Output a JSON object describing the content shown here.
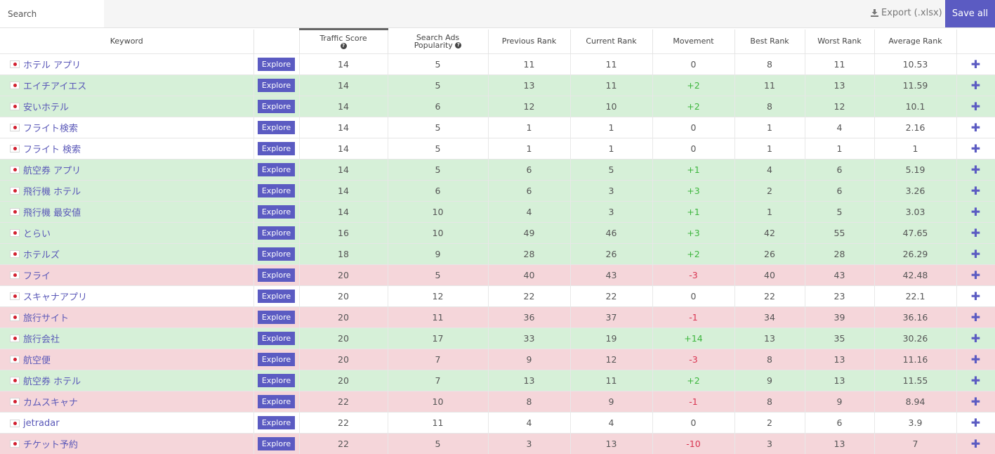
{
  "search": {
    "placeholder": "Search"
  },
  "toolbar": {
    "export_label": "Export (.xlsx)",
    "save_all_label": "Save all"
  },
  "colors": {
    "accent": "#5b5bc2",
    "row_green": "#d6f0d8",
    "row_red": "#f5d6da",
    "positive": "#3db53d",
    "negative": "#d8334f"
  },
  "columns": {
    "keyword": "Keyword",
    "traffic_score": "Traffic Score",
    "search_ads_1": "Search Ads",
    "search_ads_2": "Popularity",
    "previous_rank": "Previous Rank",
    "current_rank": "Current Rank",
    "movement": "Movement",
    "best_rank": "Best Rank",
    "worst_rank": "Worst Rank",
    "average_rank": "Average Rank"
  },
  "explore_label": "Explore",
  "rows": [
    {
      "keyword": "ホテル アプリ",
      "traffic": "14",
      "ads": "5",
      "prev": "11",
      "cur": "11",
      "move": "0",
      "best": "8",
      "worst": "11",
      "avg": "10.53",
      "tone": "plain",
      "dir": "zero"
    },
    {
      "keyword": "エイチアイエス",
      "traffic": "14",
      "ads": "5",
      "prev": "13",
      "cur": "11",
      "move": "+2",
      "best": "11",
      "worst": "13",
      "avg": "11.59",
      "tone": "green",
      "dir": "pos"
    },
    {
      "keyword": "安いホテル",
      "traffic": "14",
      "ads": "6",
      "prev": "12",
      "cur": "10",
      "move": "+2",
      "best": "8",
      "worst": "12",
      "avg": "10.1",
      "tone": "green",
      "dir": "pos"
    },
    {
      "keyword": "フライト検索",
      "traffic": "14",
      "ads": "5",
      "prev": "1",
      "cur": "1",
      "move": "0",
      "best": "1",
      "worst": "4",
      "avg": "2.16",
      "tone": "plain",
      "dir": "zero"
    },
    {
      "keyword": "フライト 検索",
      "traffic": "14",
      "ads": "5",
      "prev": "1",
      "cur": "1",
      "move": "0",
      "best": "1",
      "worst": "1",
      "avg": "1",
      "tone": "plain",
      "dir": "zero"
    },
    {
      "keyword": "航空券 アプリ",
      "traffic": "14",
      "ads": "5",
      "prev": "6",
      "cur": "5",
      "move": "+1",
      "best": "4",
      "worst": "6",
      "avg": "5.19",
      "tone": "green",
      "dir": "pos"
    },
    {
      "keyword": "飛行機 ホテル",
      "traffic": "14",
      "ads": "6",
      "prev": "6",
      "cur": "3",
      "move": "+3",
      "best": "2",
      "worst": "6",
      "avg": "3.26",
      "tone": "green",
      "dir": "pos"
    },
    {
      "keyword": "飛行機 最安値",
      "traffic": "14",
      "ads": "10",
      "prev": "4",
      "cur": "3",
      "move": "+1",
      "best": "1",
      "worst": "5",
      "avg": "3.03",
      "tone": "green",
      "dir": "pos"
    },
    {
      "keyword": "とらい",
      "traffic": "16",
      "ads": "10",
      "prev": "49",
      "cur": "46",
      "move": "+3",
      "best": "42",
      "worst": "55",
      "avg": "47.65",
      "tone": "green",
      "dir": "pos"
    },
    {
      "keyword": "ホテルズ",
      "traffic": "18",
      "ads": "9",
      "prev": "28",
      "cur": "26",
      "move": "+2",
      "best": "26",
      "worst": "28",
      "avg": "26.29",
      "tone": "green",
      "dir": "pos"
    },
    {
      "keyword": "フライ",
      "traffic": "20",
      "ads": "5",
      "prev": "40",
      "cur": "43",
      "move": "-3",
      "best": "40",
      "worst": "43",
      "avg": "42.48",
      "tone": "red",
      "dir": "neg"
    },
    {
      "keyword": "スキャナアプリ",
      "traffic": "20",
      "ads": "12",
      "prev": "22",
      "cur": "22",
      "move": "0",
      "best": "22",
      "worst": "23",
      "avg": "22.1",
      "tone": "plain",
      "dir": "zero"
    },
    {
      "keyword": "旅行サイト",
      "traffic": "20",
      "ads": "11",
      "prev": "36",
      "cur": "37",
      "move": "-1",
      "best": "34",
      "worst": "39",
      "avg": "36.16",
      "tone": "red",
      "dir": "neg"
    },
    {
      "keyword": "旅行会社",
      "traffic": "20",
      "ads": "17",
      "prev": "33",
      "cur": "19",
      "move": "+14",
      "best": "13",
      "worst": "35",
      "avg": "30.26",
      "tone": "green",
      "dir": "pos"
    },
    {
      "keyword": "航空便",
      "traffic": "20",
      "ads": "7",
      "prev": "9",
      "cur": "12",
      "move": "-3",
      "best": "8",
      "worst": "13",
      "avg": "11.16",
      "tone": "red",
      "dir": "neg"
    },
    {
      "keyword": "航空券 ホテル",
      "traffic": "20",
      "ads": "7",
      "prev": "13",
      "cur": "11",
      "move": "+2",
      "best": "9",
      "worst": "13",
      "avg": "11.55",
      "tone": "green",
      "dir": "pos"
    },
    {
      "keyword": "カムスキャナ",
      "traffic": "22",
      "ads": "10",
      "prev": "8",
      "cur": "9",
      "move": "-1",
      "best": "8",
      "worst": "9",
      "avg": "8.94",
      "tone": "red",
      "dir": "neg"
    },
    {
      "keyword": "jetradar",
      "traffic": "22",
      "ads": "11",
      "prev": "4",
      "cur": "4",
      "move": "0",
      "best": "2",
      "worst": "6",
      "avg": "3.9",
      "tone": "plain",
      "dir": "zero"
    },
    {
      "keyword": "チケット予約",
      "traffic": "22",
      "ads": "5",
      "prev": "3",
      "cur": "13",
      "move": "-10",
      "best": "3",
      "worst": "13",
      "avg": "7",
      "tone": "red",
      "dir": "neg"
    }
  ]
}
